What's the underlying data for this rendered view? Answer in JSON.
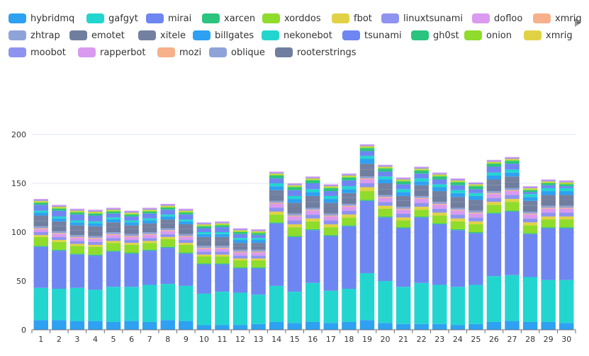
{
  "legend": {
    "more_icon": "chevron-right-icon",
    "items": [
      {
        "name": "hybridmq",
        "color": "#2ea1f2"
      },
      {
        "name": "gafgyt",
        "color": "#22d6cf"
      },
      {
        "name": "mirai",
        "color": "#6e86f2"
      },
      {
        "name": "xarcen",
        "color": "#2bc47f"
      },
      {
        "name": "xorddos",
        "color": "#8fdc2c"
      },
      {
        "name": "fbot",
        "color": "#e1d245"
      },
      {
        "name": "linuxtsunami",
        "color": "#8f93f0"
      },
      {
        "name": "dofloo",
        "color": "#d99af0"
      },
      {
        "name": "xmrig",
        "color": "#f6b08a"
      },
      {
        "name": "zhtrap",
        "color": "#8ea3d8"
      },
      {
        "name": "emotet",
        "color": "#6f7e9f"
      },
      {
        "name": "xitele",
        "color": "#74809f"
      },
      {
        "name": "billgates",
        "color": "#2ea1f2"
      },
      {
        "name": "nekonebot",
        "color": "#22d6cf"
      },
      {
        "name": "tsunami",
        "color": "#6e86f2"
      },
      {
        "name": "gh0st",
        "color": "#2bc47f"
      },
      {
        "name": "onion",
        "color": "#8fdc2c"
      },
      {
        "name": "xmrig",
        "color": "#e1d245"
      },
      {
        "name": "moobot",
        "color": "#8f93f0"
      },
      {
        "name": "rapperbot",
        "color": "#d99af0"
      },
      {
        "name": "mozi",
        "color": "#f6b08a"
      },
      {
        "name": "oblique",
        "color": "#8ea3d8"
      },
      {
        "name": "rooterstrings",
        "color": "#6f7e9f"
      }
    ]
  },
  "chart_data": {
    "type": "bar",
    "stacked": true,
    "categories": [
      "1",
      "2",
      "3",
      "4",
      "5",
      "6",
      "7",
      "8",
      "9",
      "10",
      "11",
      "12",
      "13",
      "14",
      "15",
      "16",
      "17",
      "18",
      "19",
      "20",
      "21",
      "22",
      "23",
      "24",
      "25",
      "26",
      "27",
      "28",
      "29",
      "30"
    ],
    "ylim": [
      0,
      200
    ],
    "y_ticks": [
      0,
      50,
      100,
      150,
      200
    ],
    "grid": "horizontal",
    "legend_position": "top",
    "series": [
      {
        "name": "hybridmq",
        "color": "#2ea1f2",
        "values": [
          10,
          10,
          9,
          9,
          8,
          9,
          8,
          10,
          9,
          5,
          5,
          5,
          6,
          8,
          7,
          8,
          7,
          8,
          10,
          7,
          6,
          6,
          6,
          5,
          6,
          8,
          9,
          8,
          8,
          7
        ]
      },
      {
        "name": "gafgyt",
        "color": "#22d6cf",
        "values": [
          33,
          32,
          34,
          32,
          36,
          35,
          38,
          37,
          36,
          32,
          34,
          33,
          30,
          37,
          32,
          40,
          33,
          34,
          48,
          43,
          38,
          42,
          40,
          39,
          40,
          47,
          47,
          46,
          43,
          44
        ]
      },
      {
        "name": "mirai",
        "color": "#6e86f2",
        "values": [
          42,
          39,
          34,
          35,
          36,
          34,
          35,
          37,
          33,
          30,
          28,
          25,
          27,
          64,
          56,
          54,
          56,
          64,
          74,
          65,
          60,
          67,
          62,
          58,
          53,
          64,
          65,
          44,
          53,
          53
        ]
      },
      {
        "name": "xarcen",
        "color": "#2bc47f",
        "values": [
          1,
          1,
          1,
          1,
          1,
          1,
          1,
          1,
          1,
          1,
          1,
          1,
          1,
          1,
          1,
          1,
          1,
          1,
          1,
          1,
          1,
          1,
          1,
          1,
          1,
          1,
          1,
          1,
          1,
          1
        ]
      },
      {
        "name": "xorddos",
        "color": "#8fdc2c",
        "values": [
          9,
          8,
          8,
          8,
          8,
          8,
          7,
          8,
          8,
          7,
          7,
          7,
          7,
          8,
          9,
          8,
          8,
          8,
          9,
          8,
          7,
          7,
          8,
          8,
          8,
          8,
          9,
          8,
          8,
          8
        ]
      },
      {
        "name": "fbot",
        "color": "#e1d245",
        "values": [
          2,
          2,
          2,
          2,
          2,
          2,
          2,
          2,
          2,
          2,
          2,
          2,
          2,
          3,
          3,
          3,
          3,
          3,
          4,
          3,
          3,
          3,
          3,
          3,
          3,
          3,
          3,
          3,
          3,
          3
        ]
      },
      {
        "name": "linuxtsunami",
        "color": "#8f93f0",
        "values": [
          3,
          3,
          3,
          3,
          3,
          3,
          3,
          3,
          3,
          3,
          3,
          3,
          3,
          4,
          4,
          4,
          4,
          4,
          4,
          4,
          4,
          4,
          4,
          4,
          4,
          4,
          4,
          4,
          4,
          4
        ]
      },
      {
        "name": "dofloo",
        "color": "#d99af0",
        "values": [
          3,
          3,
          3,
          3,
          3,
          3,
          3,
          3,
          3,
          3,
          3,
          3,
          3,
          4,
          4,
          4,
          4,
          4,
          4,
          4,
          4,
          4,
          4,
          4,
          4,
          4,
          4,
          4,
          4,
          4
        ]
      },
      {
        "name": "xmrig",
        "color": "#f6b08a",
        "values": [
          1,
          1,
          1,
          1,
          1,
          1,
          1,
          1,
          1,
          1,
          1,
          1,
          1,
          1,
          1,
          1,
          1,
          1,
          1,
          1,
          1,
          1,
          1,
          1,
          1,
          1,
          1,
          1,
          1,
          1
        ]
      },
      {
        "name": "zhtrap",
        "color": "#8ea3d8",
        "values": [
          2,
          2,
          2,
          2,
          2,
          2,
          2,
          2,
          2,
          2,
          2,
          2,
          2,
          2,
          2,
          2,
          2,
          2,
          2,
          2,
          2,
          2,
          2,
          2,
          2,
          2,
          2,
          2,
          2,
          2
        ]
      },
      {
        "name": "emotet",
        "color": "#6f7e9f",
        "values": [
          5,
          5,
          5,
          5,
          5,
          5,
          5,
          5,
          5,
          5,
          5,
          4,
          4,
          6,
          6,
          6,
          6,
          6,
          7,
          6,
          6,
          6,
          6,
          6,
          6,
          6,
          6,
          6,
          6,
          6
        ]
      },
      {
        "name": "xitele",
        "color": "#74809f",
        "values": [
          6,
          5,
          5,
          5,
          5,
          4,
          4,
          4,
          5,
          4,
          4,
          3,
          3,
          5,
          5,
          6,
          5,
          5,
          6,
          6,
          5,
          5,
          5,
          5,
          5,
          6,
          6,
          5,
          5,
          5
        ]
      },
      {
        "name": "billgates",
        "color": "#2ea1f2",
        "values": [
          3,
          3,
          3,
          3,
          3,
          3,
          3,
          3,
          3,
          3,
          3,
          3,
          3,
          4,
          4,
          4,
          4,
          4,
          5,
          4,
          4,
          4,
          4,
          4,
          4,
          4,
          4,
          4,
          4,
          4
        ]
      },
      {
        "name": "nekonebot",
        "color": "#22d6cf",
        "values": [
          2,
          2,
          2,
          2,
          2,
          2,
          2,
          2,
          2,
          2,
          2,
          2,
          2,
          3,
          3,
          3,
          3,
          3,
          3,
          3,
          3,
          3,
          3,
          3,
          3,
          3,
          3,
          3,
          3,
          3
        ]
      },
      {
        "name": "tsunami",
        "color": "#6e86f2",
        "values": [
          6,
          6,
          6,
          6,
          4,
          4,
          5,
          5,
          5,
          4,
          5,
          4,
          3,
          5,
          6,
          6,
          5,
          6,
          5,
          5,
          5,
          5,
          5,
          5,
          4,
          6,
          6,
          2,
          3,
          2
        ]
      },
      {
        "name": "gh0st",
        "color": "#2bc47f",
        "values": [
          2,
          2,
          2,
          2,
          2,
          2,
          2,
          2,
          2,
          2,
          2,
          2,
          2,
          3,
          3,
          3,
          3,
          3,
          3,
          3,
          3,
          3,
          3,
          3,
          3,
          3,
          3,
          2,
          2,
          2
        ]
      },
      {
        "name": "onion",
        "color": "#8fdc2c",
        "values": [
          1,
          1,
          1,
          1,
          1,
          1,
          1,
          1,
          1,
          1,
          1,
          1,
          1,
          1,
          1,
          1,
          1,
          1,
          1,
          1,
          1,
          1,
          1,
          1,
          1,
          1,
          1,
          1,
          1,
          1
        ]
      },
      {
        "name": "xmrig",
        "color": "#e1d245",
        "values": [
          1,
          1,
          1,
          1,
          1,
          1,
          1,
          1,
          1,
          1,
          1,
          1,
          1,
          1,
          1,
          1,
          1,
          1,
          1,
          1,
          1,
          1,
          1,
          1,
          1,
          1,
          1,
          1,
          1,
          1
        ]
      },
      {
        "name": "moobot",
        "color": "#8f93f0",
        "values": [
          1,
          1,
          1,
          1,
          1,
          1,
          1,
          1,
          1,
          1,
          1,
          1,
          1,
          1,
          1,
          1,
          1,
          1,
          1,
          1,
          1,
          1,
          1,
          1,
          1,
          1,
          1,
          1,
          1,
          1
        ]
      },
      {
        "name": "rapperbot",
        "color": "#d99af0",
        "values": [
          1,
          1,
          1,
          1,
          1,
          1,
          1,
          1,
          1,
          1,
          1,
          1,
          1,
          1,
          1,
          1,
          1,
          1,
          1,
          1,
          1,
          1,
          1,
          1,
          1,
          1,
          1,
          1,
          1,
          1
        ]
      },
      {
        "name": "mozi",
        "color": "#f6b08a",
        "values": [
          0,
          0,
          0,
          0,
          0,
          0,
          0,
          0,
          0,
          0,
          0,
          0,
          0,
          0,
          0,
          0,
          0,
          0,
          0,
          0,
          0,
          0,
          0,
          0,
          0,
          0,
          0,
          0,
          0,
          0
        ]
      },
      {
        "name": "oblique",
        "color": "#8ea3d8",
        "values": [
          0,
          0,
          0,
          0,
          0,
          0,
          0,
          0,
          0,
          0,
          0,
          0,
          0,
          0,
          0,
          0,
          0,
          0,
          0,
          0,
          0,
          0,
          0,
          0,
          0,
          0,
          0,
          0,
          0,
          0
        ]
      },
      {
        "name": "rooterstrings",
        "color": "#6f7e9f",
        "values": [
          0,
          0,
          0,
          0,
          0,
          0,
          0,
          0,
          0,
          0,
          0,
          0,
          0,
          0,
          0,
          0,
          0,
          0,
          0,
          0,
          0,
          0,
          0,
          0,
          0,
          0,
          0,
          0,
          0,
          0
        ]
      }
    ]
  }
}
